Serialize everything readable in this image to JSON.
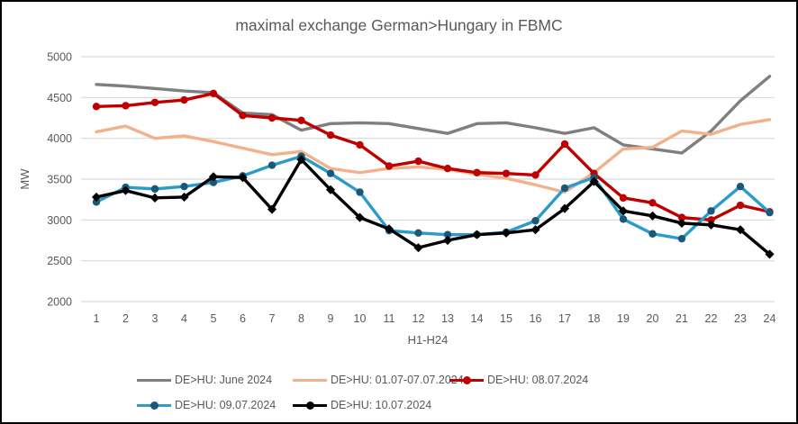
{
  "title": "maximal exchange German>Hungary in FBMC",
  "axes": {
    "y_label": "MW",
    "x_label": "H1-H24",
    "y_ticks": [
      5000,
      4500,
      4000,
      3500,
      3000,
      2500,
      2000
    ],
    "x_ticks": [
      1,
      2,
      3,
      4,
      5,
      6,
      7,
      8,
      9,
      10,
      11,
      12,
      13,
      14,
      15,
      16,
      17,
      18,
      19,
      20,
      21,
      22,
      23,
      24
    ]
  },
  "colors": {
    "text": "#595959",
    "gridline": "#d9d9d9",
    "june": "#7f7f7f",
    "week": "#f1b18b",
    "day0807": "#c00000",
    "day0907": "#2b9cc9",
    "day0907_marker": "#1a587a",
    "day1007": "#000000"
  },
  "legend": {
    "rows": [
      [
        0,
        1,
        2
      ],
      [
        3,
        4
      ]
    ]
  },
  "chart_data": {
    "type": "line",
    "title": "maximal exchange German>Hungary in FBMC",
    "xlabel": "H1-H24",
    "ylabel": "MW",
    "ylim": [
      2000,
      5000
    ],
    "grid": "horizontal",
    "legend_position": "bottom",
    "x": [
      1,
      2,
      3,
      4,
      5,
      6,
      7,
      8,
      9,
      10,
      11,
      12,
      13,
      14,
      15,
      16,
      17,
      18,
      19,
      20,
      21,
      22,
      23,
      24
    ],
    "series": [
      {
        "name": "DE>HU: June 2024",
        "color": "#7f7f7f",
        "marker": "none",
        "values": [
          4660,
          4640,
          4610,
          4580,
          4560,
          4310,
          4290,
          4100,
          4180,
          4190,
          4180,
          4120,
          4060,
          4180,
          4190,
          4130,
          4060,
          4130,
          3920,
          3870,
          3820,
          4090,
          4460,
          4760
        ]
      },
      {
        "name": "DE>HU: 01.07-07.07.2024",
        "color": "#f1b18b",
        "marker": "none",
        "values": [
          4080,
          4150,
          4000,
          4030,
          3960,
          3880,
          3800,
          3840,
          3630,
          3580,
          3630,
          3650,
          3620,
          3560,
          3510,
          3430,
          3340,
          3580,
          3870,
          3890,
          4090,
          4050,
          4170,
          4230
        ]
      },
      {
        "name": "DE>HU: 08.07.2024",
        "color": "#c00000",
        "marker": "circle",
        "marker_color": "#c00000",
        "values": [
          4390,
          4400,
          4440,
          4470,
          4550,
          4280,
          4250,
          4220,
          4040,
          3920,
          3660,
          3720,
          3630,
          3580,
          3570,
          3550,
          3930,
          3570,
          3270,
          3210,
          3030,
          3000,
          3180,
          3100
        ]
      },
      {
        "name": "DE>HU: 09.07.2024",
        "color": "#2b9cc9",
        "marker": "circle",
        "marker_color": "#1a587a",
        "values": [
          3220,
          3400,
          3380,
          3410,
          3460,
          3540,
          3670,
          3780,
          3570,
          3340,
          2870,
          2840,
          2820,
          2820,
          2850,
          2990,
          3390,
          3520,
          3010,
          2830,
          2770,
          3110,
          3410,
          3090
        ]
      },
      {
        "name": "DE>HU: 10.07.2024",
        "color": "#000000",
        "marker": "diamond",
        "marker_color": "#000000",
        "values": [
          3280,
          3360,
          3270,
          3280,
          3530,
          3520,
          3130,
          3740,
          3370,
          3030,
          2890,
          2660,
          2750,
          2820,
          2840,
          2880,
          3140,
          3470,
          3110,
          3050,
          2960,
          2940,
          2880,
          2580
        ]
      }
    ]
  }
}
